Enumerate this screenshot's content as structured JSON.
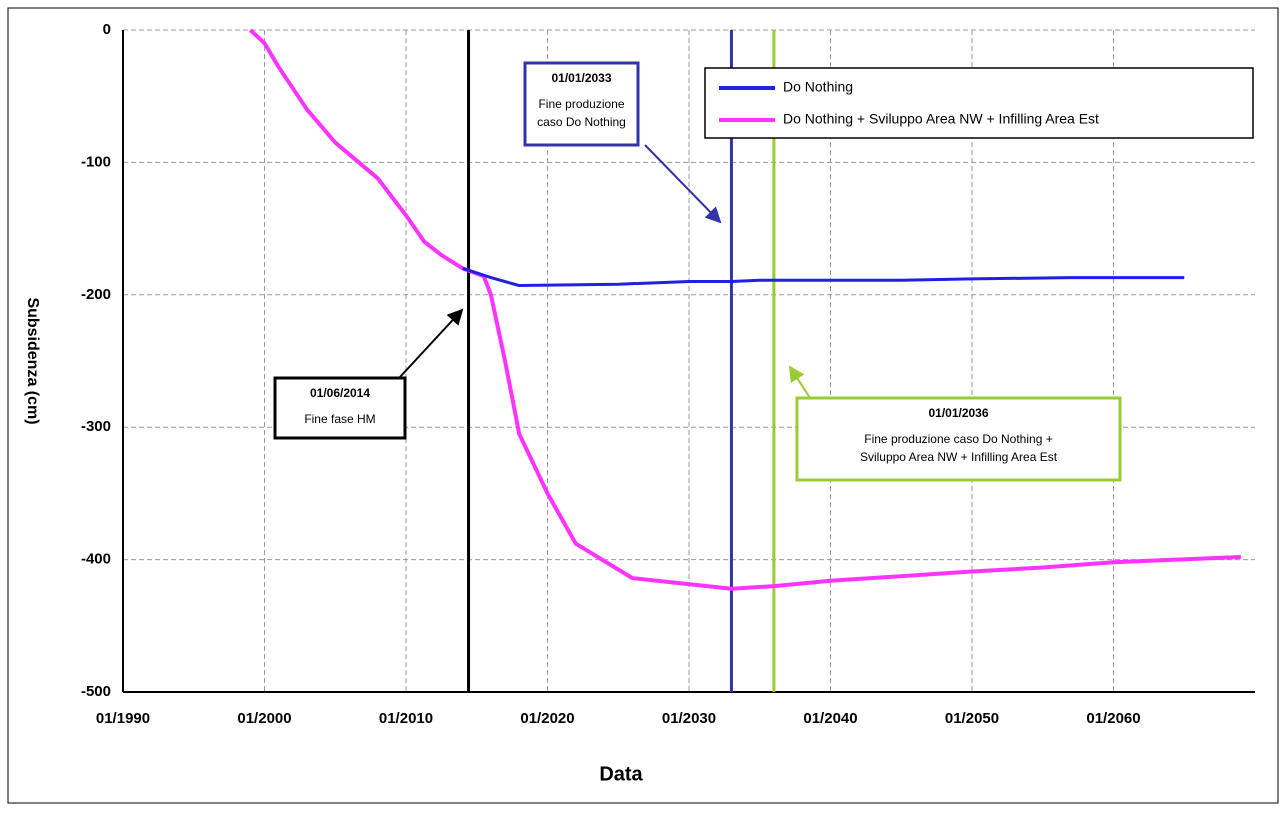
{
  "chart_data": {
    "type": "line",
    "xlabel": "Data",
    "ylabel": "Subsidenza (cm)",
    "xlim": [
      1990,
      2070
    ],
    "xticks": [
      {
        "value": 1990,
        "label": "01/1990"
      },
      {
        "value": 2000,
        "label": "01/2000"
      },
      {
        "value": 2010,
        "label": "01/2010"
      },
      {
        "value": 2020,
        "label": "01/2020"
      },
      {
        "value": 2030,
        "label": "01/2030"
      },
      {
        "value": 2040,
        "label": "01/2040"
      },
      {
        "value": 2050,
        "label": "01/2050"
      },
      {
        "value": 2060,
        "label": "01/2060"
      }
    ],
    "ylim": [
      -500,
      0
    ],
    "yticks": [
      0,
      -100,
      -200,
      -300,
      -400,
      -500
    ],
    "grid": true,
    "legend": "upper right",
    "series": [
      {
        "name": "Do Nothing",
        "color": "#1f1fe6",
        "x": [
          2014,
          2016,
          2018,
          2025,
          2030,
          2033,
          2035,
          2045,
          2050,
          2057,
          2065
        ],
        "values": [
          -180,
          -187,
          -193,
          -192,
          -190,
          -190,
          -189,
          -189,
          -188,
          -187,
          -187
        ]
      },
      {
        "name": "Do Nothing + Sviluppo Area NW + Infilling Area Est",
        "color": "#ff33ff",
        "x": [
          1999,
          2000,
          2001,
          2003,
          2005,
          2008,
          2010,
          2011.3,
          2012.5,
          2014,
          2015.5,
          2016,
          2017,
          2018,
          2020,
          2022,
          2026,
          2033,
          2036,
          2040,
          2050,
          2055,
          2060,
          2069
        ],
        "values": [
          0,
          -10,
          -28,
          -60,
          -85,
          -112,
          -140,
          -160,
          -170,
          -180,
          -186,
          -200,
          -250,
          -305,
          -350,
          -388,
          -414,
          -422,
          -420,
          -416,
          -409,
          -406,
          -402,
          -398
        ]
      }
    ],
    "vlines": [
      {
        "x": 2014.42,
        "color": "#000000",
        "date": "01/06/2014",
        "text": [
          "Fine fase HM"
        ]
      },
      {
        "x": 2033,
        "color": "#3333aa",
        "date": "01/01/2033",
        "text": [
          "Fine produzione",
          "caso Do Nothing"
        ]
      },
      {
        "x": 2036,
        "color": "#99cc33",
        "date": "01/01/2036",
        "text": [
          "Fine produzione caso Do Nothing +",
          "Sviluppo Area NW + Infilling Area Est"
        ]
      }
    ]
  }
}
